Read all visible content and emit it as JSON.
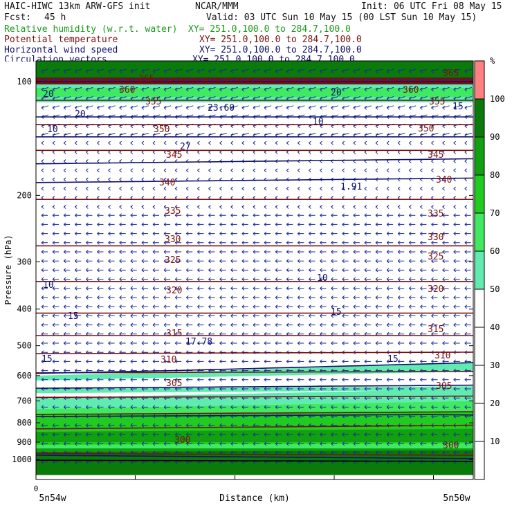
{
  "header": {
    "model": "HAIC-HIWC 13km ARW-GFS init",
    "org": "NCAR/MMM",
    "init": "Init: 06 UTC Fri 08 May 15",
    "fcst_label": "Fcst:",
    "fcst_value": "45 h",
    "valid": "Valid: 03 UTC Sun 10 May 15 (00 LST Sun 10 May 15)",
    "fields": [
      {
        "name": "Relative humidity (w.r.t. water)",
        "xy": "XY= 251.0,100.0 to 284.7,100.0",
        "color": "#1a9a1a"
      },
      {
        "name": "Potential temperature",
        "xy": "XY= 251.0,100.0 to 284.7,100.0",
        "color": "#7a1010"
      },
      {
        "name": "Horizontal wind speed",
        "xy": "XY= 251.0,100.0 to 284.7,100.0",
        "color": "#10106a"
      },
      {
        "name": "Circulation vectors",
        "xy": "XY= 251.0,100.0 to 284.7,100.0",
        "color": "#10106a"
      }
    ]
  },
  "chart_data": {
    "type": "cross-section",
    "xlabel": "Distance (km)",
    "ylabel": "Pressure (hPa)",
    "x_tick_zero": "0",
    "x_left_label": "5n54w",
    "x_right_label": "5n50w",
    "y_ticks": [
      100,
      200,
      300,
      400,
      500,
      600,
      700,
      800,
      900,
      1000
    ],
    "y_scale": "log",
    "ylim": [
      1050,
      85
    ],
    "colorbar": {
      "unit": "%",
      "levels": [
        10,
        20,
        30,
        40,
        50,
        60,
        70,
        80,
        90,
        100
      ],
      "colors": [
        "#ffffff",
        "#ffffff",
        "#ffffff",
        "#ffffff",
        "#ffffff",
        "#60ecb0",
        "#40ea60",
        "#20cc20",
        "#10a010",
        "#0a7a0a",
        "#ff8080"
      ]
    },
    "theta_labels": [
      "300",
      "305",
      "310",
      "315",
      "320",
      "325",
      "330",
      "335",
      "340",
      "345",
      "350",
      "355",
      "360",
      "365"
    ],
    "wind_labels": [
      "10",
      "15",
      "20",
      "23.60",
      "27",
      "1.91",
      "17.78"
    ],
    "colors": {
      "rh_50": "#60ecb0",
      "rh_60": "#40ea60",
      "rh_70": "#20cc20",
      "rh_80": "#10a010",
      "rh_90": "#0a7a0a",
      "theta": "#7a1010",
      "wind": "#10106a",
      "vector": "#1a2a9a"
    }
  }
}
